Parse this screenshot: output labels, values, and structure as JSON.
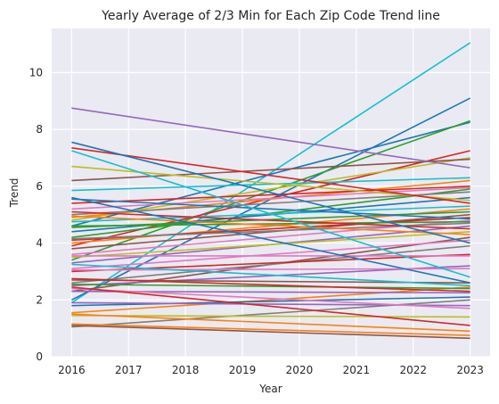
{
  "chart_data": {
    "type": "line",
    "title": "Yearly Average of 2/3 Min for Each Zip Code Trend line",
    "xlabel": "Year",
    "ylabel": "Trend",
    "x": [
      2016,
      2017,
      2018,
      2019,
      2020,
      2021,
      2022,
      2023
    ],
    "xlim": [
      2015.65,
      2023.35
    ],
    "ylim": [
      0,
      11.55
    ],
    "yticks": [
      0,
      2,
      4,
      6,
      8,
      10
    ],
    "grid": true,
    "plot_background": "#eaeaf2",
    "series": [
      {
        "color": "#17becf",
        "start": 1.9,
        "end": 11.05
      },
      {
        "color": "#1f77b4",
        "start": 2.0,
        "end": 9.1
      },
      {
        "color": "#1f77b4",
        "start": 4.6,
        "end": 8.25
      },
      {
        "color": "#2ca02c",
        "start": 3.4,
        "end": 8.3
      },
      {
        "color": "#d62728",
        "start": 3.9,
        "end": 7.25
      },
      {
        "color": "#bcbd22",
        "start": 4.8,
        "end": 7.0
      },
      {
        "color": "#8c564b",
        "start": 6.2,
        "end": 6.95
      },
      {
        "color": "#9467bd",
        "start": 8.75,
        "end": 6.65
      },
      {
        "color": "#17becf",
        "start": 5.85,
        "end": 6.3
      },
      {
        "color": "#ff7f0e",
        "start": 4.9,
        "end": 6.2
      },
      {
        "color": "#d62728",
        "start": 5.4,
        "end": 6.0
      },
      {
        "color": "#e377c2",
        "start": 5.2,
        "end": 5.95
      },
      {
        "color": "#2ca02c",
        "start": 4.2,
        "end": 5.9
      },
      {
        "color": "#7f7f7f",
        "start": 5.0,
        "end": 5.8
      },
      {
        "color": "#1f77b4",
        "start": 4.4,
        "end": 5.6
      },
      {
        "color": "#bcbd22",
        "start": 6.7,
        "end": 5.5
      },
      {
        "color": "#d62728",
        "start": 7.35,
        "end": 5.4
      },
      {
        "color": "#17becf",
        "start": 4.75,
        "end": 5.3
      },
      {
        "color": "#ff7f0e",
        "start": 4.0,
        "end": 5.2
      },
      {
        "color": "#2ca02c",
        "start": 4.55,
        "end": 5.1
      },
      {
        "color": "#8c564b",
        "start": 3.8,
        "end": 5.0
      },
      {
        "color": "#d62728",
        "start": 4.1,
        "end": 4.9
      },
      {
        "color": "#1f77b4",
        "start": 5.55,
        "end": 4.85
      },
      {
        "color": "#e377c2",
        "start": 3.6,
        "end": 4.8
      },
      {
        "color": "#2ca02c",
        "start": 4.6,
        "end": 4.75
      },
      {
        "color": "#7f7f7f",
        "start": 4.15,
        "end": 4.7
      },
      {
        "color": "#9467bd",
        "start": 3.3,
        "end": 4.6
      },
      {
        "color": "#d62728",
        "start": 5.1,
        "end": 4.5
      },
      {
        "color": "#bcbd22",
        "start": 3.5,
        "end": 4.4
      },
      {
        "color": "#ff7f0e",
        "start": 4.95,
        "end": 4.3
      },
      {
        "color": "#8c564b",
        "start": 2.3,
        "end": 4.2
      },
      {
        "color": "#e377c2",
        "start": 3.1,
        "end": 4.1
      },
      {
        "color": "#1f77b4",
        "start": 7.55,
        "end": 4.0
      },
      {
        "color": "#7f7f7f",
        "start": 2.6,
        "end": 3.9
      },
      {
        "color": "#d62728",
        "start": 3.0,
        "end": 3.6
      },
      {
        "color": "#e377c2",
        "start": 3.55,
        "end": 3.55
      },
      {
        "color": "#9467bd",
        "start": 2.5,
        "end": 3.2
      },
      {
        "color": "#e377c2",
        "start": 3.05,
        "end": 3.1
      },
      {
        "color": "#17becf",
        "start": 7.25,
        "end": 2.8
      },
      {
        "color": "#1f77b4",
        "start": 5.6,
        "end": 2.6
      },
      {
        "color": "#8c564b",
        "start": 2.7,
        "end": 2.6
      },
      {
        "color": "#17becf",
        "start": 3.25,
        "end": 2.5
      },
      {
        "color": "#ff7f0e",
        "start": 1.55,
        "end": 2.45
      },
      {
        "color": "#2ca02c",
        "start": 2.55,
        "end": 2.4
      },
      {
        "color": "#d62728",
        "start": 2.75,
        "end": 2.3
      },
      {
        "color": "#9467bd",
        "start": 2.3,
        "end": 2.25
      },
      {
        "color": "#1f77b4",
        "start": 1.8,
        "end": 2.1
      },
      {
        "color": "#7f7f7f",
        "start": 1.05,
        "end": 2.0
      },
      {
        "color": "#9467bd",
        "start": 1.9,
        "end": 1.8
      },
      {
        "color": "#e377c2",
        "start": 2.4,
        "end": 1.7
      },
      {
        "color": "#bcbd22",
        "start": 1.45,
        "end": 1.4
      },
      {
        "color": "#d62728",
        "start": 2.45,
        "end": 1.1
      },
      {
        "color": "#ff7f0e",
        "start": 1.5,
        "end": 0.9
      },
      {
        "color": "#ff7f0e",
        "start": 1.15,
        "end": 0.75
      },
      {
        "color": "#8c564b",
        "start": 1.1,
        "end": 0.65
      }
    ]
  }
}
